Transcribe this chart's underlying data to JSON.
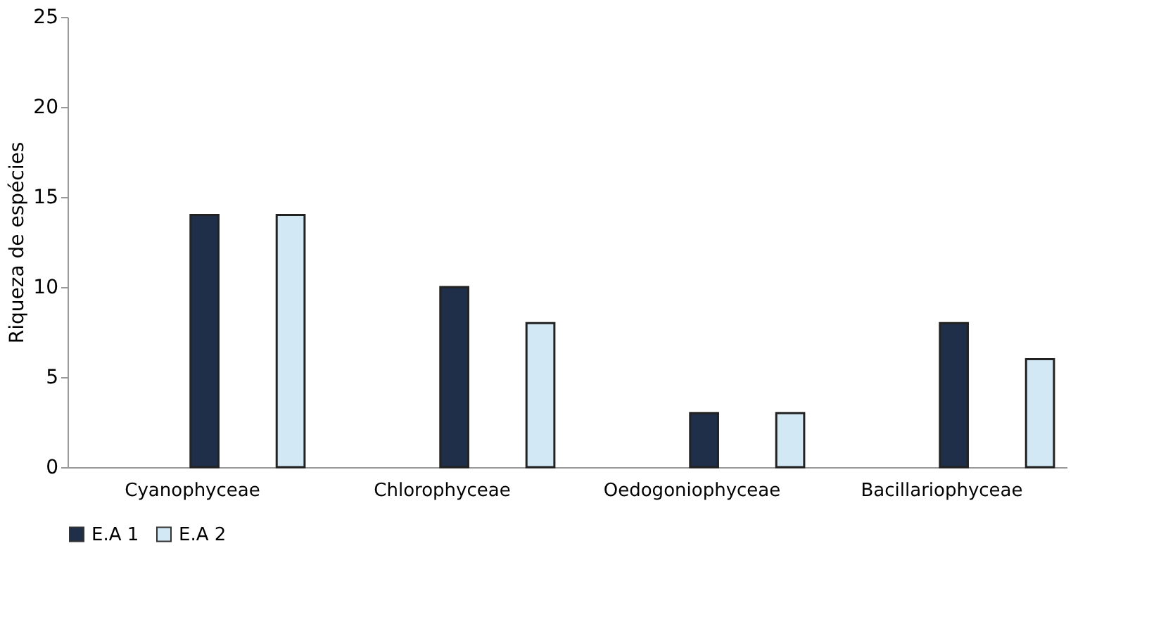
{
  "chart_data": {
    "type": "bar",
    "ylabel": "Riqueza de espécies",
    "categories": [
      "Cyanophyceae",
      "Chlorophyceae",
      "Oedogoniophyceae",
      "Bacillariophyceae"
    ],
    "series": [
      {
        "name": "E.A 1",
        "color": "#1f2f4a",
        "values": [
          14,
          10,
          3,
          8
        ]
      },
      {
        "name": "E.A 2",
        "color": "#d2e9f5",
        "values": [
          14,
          8,
          3,
          6
        ]
      }
    ],
    "ylim": [
      0,
      25
    ],
    "yticks": [
      0,
      5,
      10,
      15,
      20,
      25
    ],
    "grid": false,
    "legend": "bottom"
  }
}
